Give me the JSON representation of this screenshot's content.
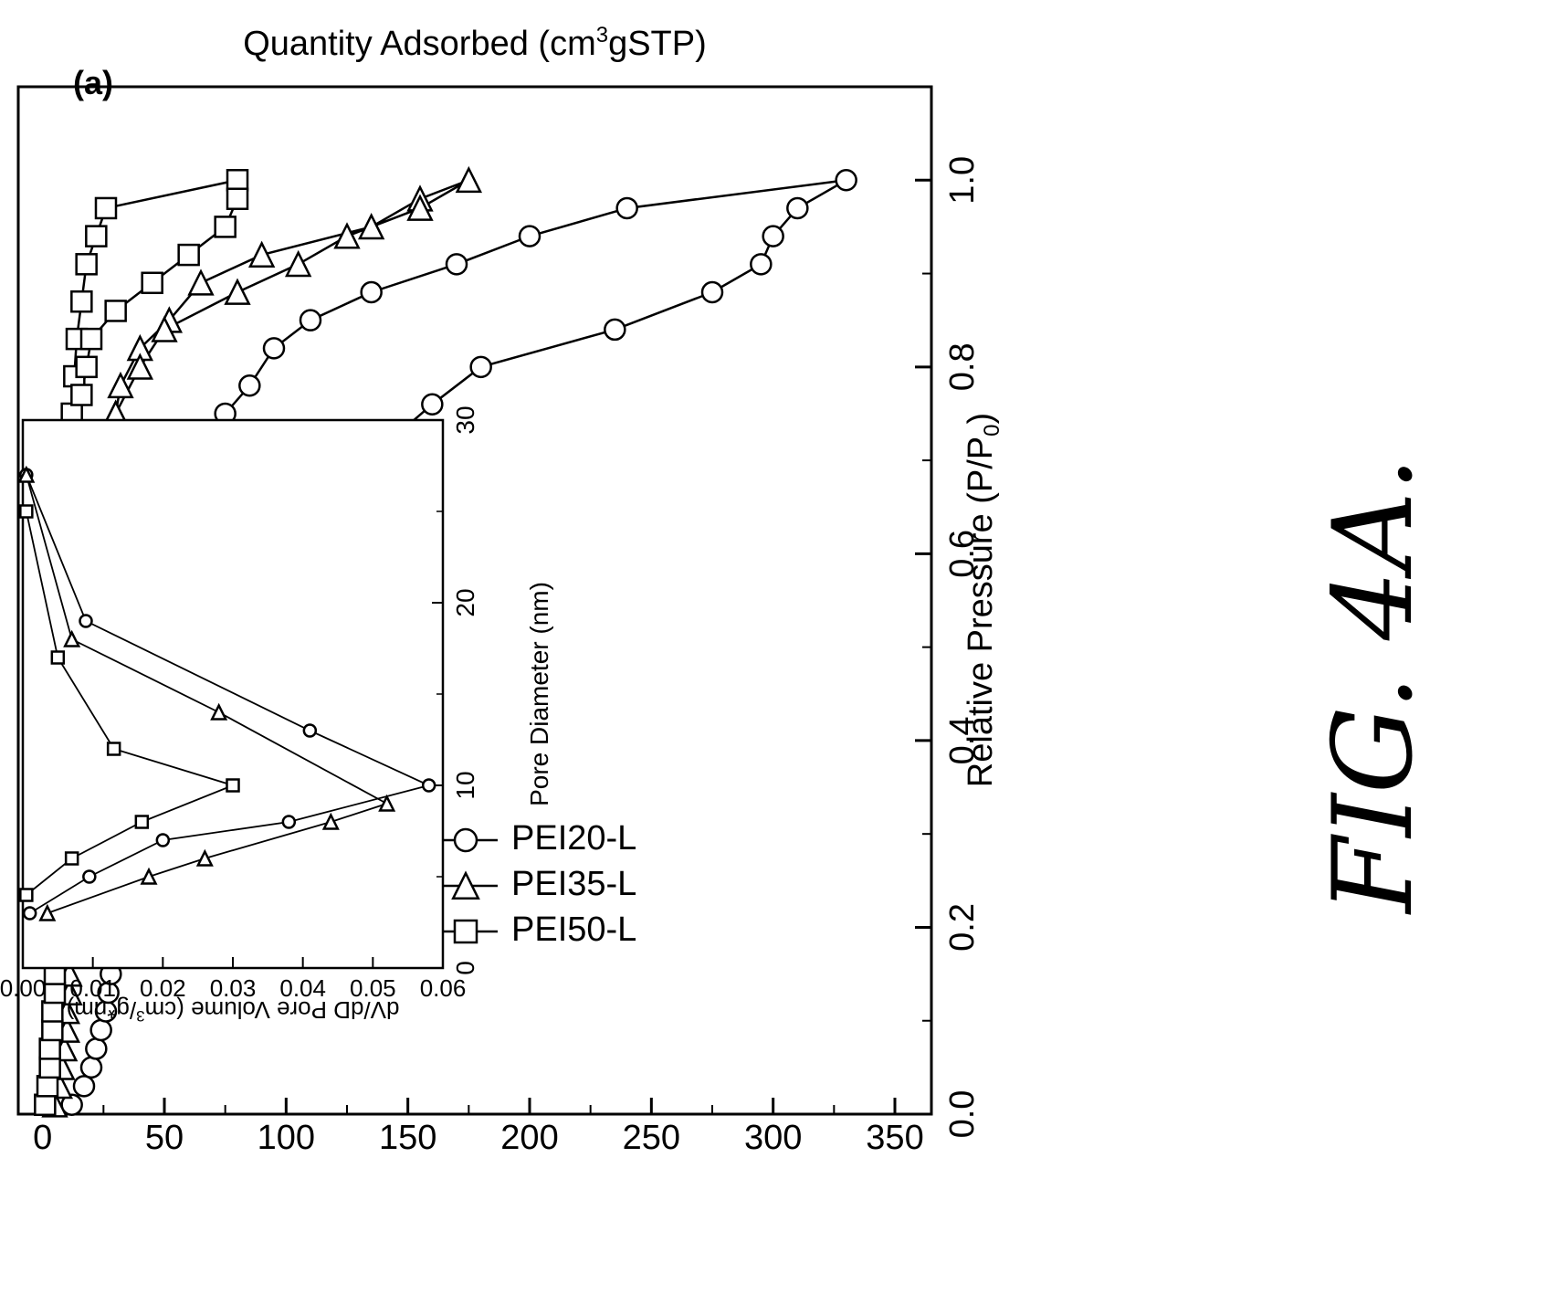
{
  "figure": {
    "label": "FIG. 4A.",
    "panel_label": "(a)"
  },
  "chart_data": [
    {
      "type": "line",
      "xlabel": "Relative Pressure (P/P",
      "xlabel_sub": "0",
      "xlabel_close": ")",
      "ylabel_pre": "Quantity Adsorbed (cm",
      "ylabel_sup": "3",
      "ylabel_post": "gSTP)",
      "xlim": [
        0,
        1.1
      ],
      "ylim": [
        -10,
        365
      ],
      "xticks": [
        "0.0",
        "0.2",
        "0.4",
        "0.6",
        "0.8",
        "1.0"
      ],
      "yticks": [
        "0",
        "50",
        "100",
        "150",
        "200",
        "250",
        "300",
        "350"
      ],
      "legend": [
        "PEI20-L",
        "PEI35-L",
        "PEI50-L"
      ],
      "series": [
        {
          "name": "PEI20-L",
          "marker": "circle",
          "x": [
            0.01,
            0.03,
            0.05,
            0.07,
            0.09,
            0.11,
            0.13,
            0.15,
            0.17,
            0.19,
            0.21,
            0.27,
            0.33,
            0.36,
            0.39,
            0.43,
            0.45,
            0.5,
            0.55,
            0.6,
            0.65,
            0.7,
            0.75,
            0.78,
            0.82,
            0.85,
            0.88,
            0.91,
            0.94,
            0.97,
            1.0,
            0.97,
            0.94,
            0.91,
            0.88,
            0.84,
            0.8,
            0.76,
            0.67,
            0.56,
            0.45,
            0.35,
            0.27,
            0.2
          ],
          "y": [
            12,
            17,
            20,
            22,
            24,
            26,
            27,
            28,
            29,
            30,
            30,
            35,
            38,
            41,
            43,
            45,
            48,
            50,
            53,
            58,
            65,
            68,
            75,
            85,
            95,
            110,
            135,
            170,
            200,
            240,
            330,
            310,
            300,
            295,
            275,
            235,
            180,
            160,
            120,
            90,
            70,
            57,
            47,
            40
          ]
        },
        {
          "name": "PEI35-L",
          "marker": "triangle",
          "x": [
            0.01,
            0.03,
            0.05,
            0.07,
            0.09,
            0.11,
            0.13,
            0.15,
            0.17,
            0.19,
            0.21,
            0.26,
            0.31,
            0.36,
            0.41,
            0.46,
            0.51,
            0.56,
            0.61,
            0.66,
            0.71,
            0.75,
            0.78,
            0.82,
            0.85,
            0.89,
            0.92,
            0.95,
            0.98,
            1.0,
            0.97,
            0.94,
            0.91,
            0.88,
            0.84,
            0.8,
            0.75
          ],
          "y": [
            5,
            7,
            8,
            9,
            10,
            10,
            11,
            11,
            12,
            12,
            13,
            14,
            15,
            16,
            17,
            18,
            19,
            20,
            21,
            23,
            26,
            30,
            32,
            40,
            52,
            65,
            90,
            135,
            155,
            175,
            155,
            125,
            105,
            80,
            50,
            40,
            30
          ]
        },
        {
          "name": "PEI50-L",
          "marker": "square",
          "x": [
            0.01,
            0.03,
            0.05,
            0.07,
            0.09,
            0.11,
            0.13,
            0.15,
            0.17,
            0.19,
            0.21,
            0.26,
            0.31,
            0.36,
            0.41,
            0.46,
            0.51,
            0.56,
            0.61,
            0.66,
            0.71,
            0.75,
            0.79,
            0.83,
            0.87,
            0.91,
            0.94,
            0.97,
            1.0,
            0.98,
            0.95,
            0.92,
            0.89,
            0.86,
            0.83,
            0.8,
            0.77
          ],
          "y": [
            1,
            2,
            3,
            3,
            4,
            4,
            5,
            5,
            5,
            6,
            6,
            6,
            7,
            7,
            8,
            8,
            9,
            9,
            10,
            10,
            11,
            12,
            13,
            14,
            16,
            18,
            22,
            26,
            80,
            80,
            75,
            60,
            45,
            30,
            20,
            18,
            16
          ]
        }
      ]
    },
    {
      "type": "line",
      "role": "inset",
      "xlabel": "Pore Diameter (nm)",
      "ylabel_pre": "dV/dD Pore Volume (cm",
      "ylabel_sup": "3",
      "ylabel_post": "/g*nm)",
      "xlim": [
        0,
        30
      ],
      "ylim": [
        0,
        0.06
      ],
      "xticks": [
        "0",
        "10",
        "20",
        "30"
      ],
      "yticks": [
        "0.00",
        "0.01",
        "0.02",
        "0.03",
        "0.04",
        "0.05",
        "0.06"
      ],
      "series": [
        {
          "name": "PEI20-L",
          "marker": "circle",
          "x": [
            3,
            5,
            7,
            8,
            10,
            13,
            19,
            27
          ],
          "y": [
            0.001,
            0.0095,
            0.02,
            0.038,
            0.058,
            0.041,
            0.009,
            0.0005
          ]
        },
        {
          "name": "PEI35-L",
          "marker": "triangle",
          "x": [
            3,
            5,
            6,
            8,
            9,
            14,
            18,
            27
          ],
          "y": [
            0.0035,
            0.018,
            0.026,
            0.044,
            0.052,
            0.028,
            0.007,
            0.0005
          ]
        },
        {
          "name": "PEI50-L",
          "marker": "square",
          "x": [
            4,
            6,
            8,
            10,
            12,
            17,
            25
          ],
          "y": [
            0.0005,
            0.007,
            0.017,
            0.03,
            0.013,
            0.005,
            0.0005
          ]
        }
      ]
    }
  ]
}
